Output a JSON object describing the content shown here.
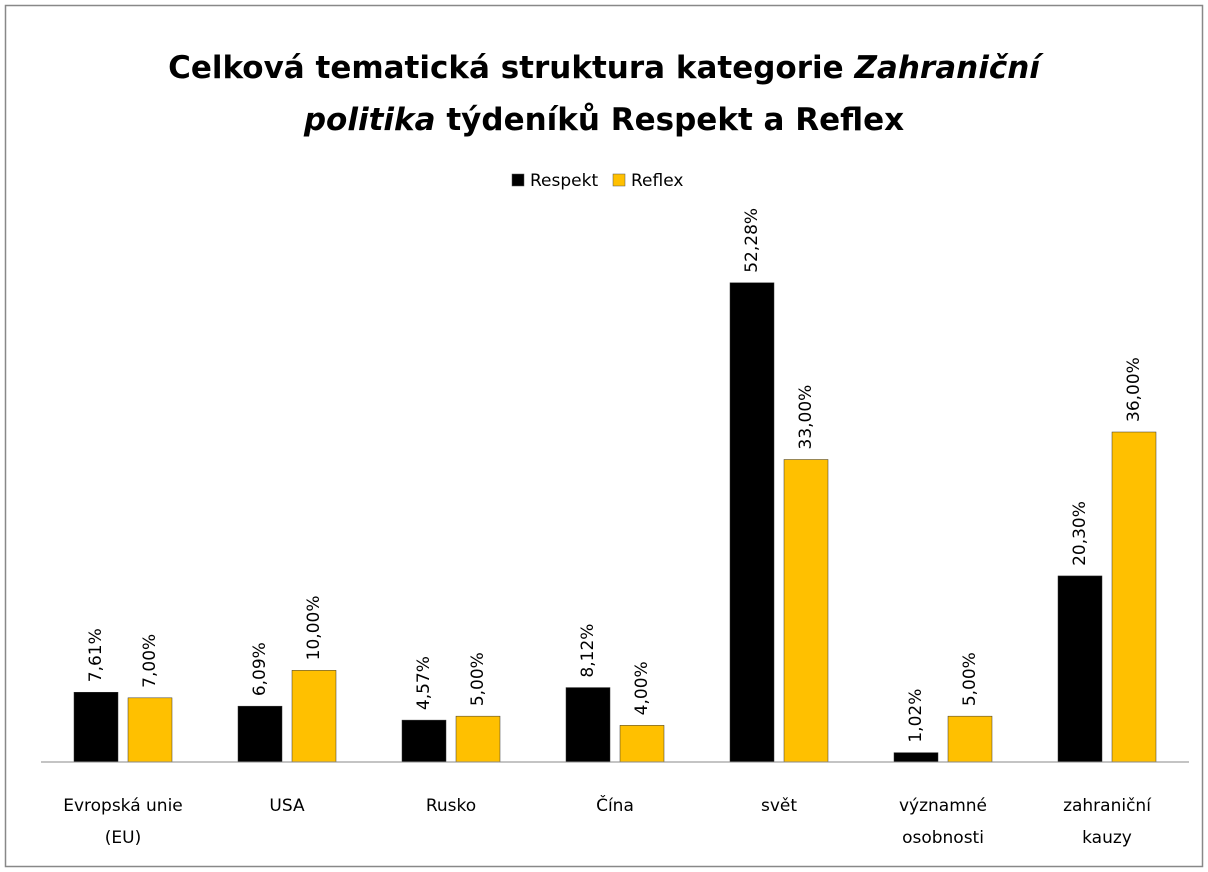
{
  "chart_data": {
    "type": "bar",
    "title": [
      [
        {
          "text": "Celková tematická struktura kategorie ",
          "italic": false
        },
        {
          "text": "Zahraniční",
          "italic": true
        }
      ],
      [
        {
          "text": "politika",
          "italic": true
        },
        {
          "text": " týdeníků Respekt a Reflex",
          "italic": false
        }
      ]
    ],
    "categories": [
      "Evropská unie\n(EU)",
      "USA",
      "Rusko",
      "Čína",
      "svět",
      "významné\nosobnosti",
      "zahraniční\nkauzy"
    ],
    "series": [
      {
        "name": "Respekt",
        "color": "#000000",
        "values": [
          7.61,
          6.09,
          4.57,
          8.12,
          52.28,
          1.02,
          20.3
        ],
        "value_labels": [
          "7,61%",
          "6,09%",
          "4,57%",
          "8,12%",
          "52,28%",
          "1,02%",
          "20,30%"
        ]
      },
      {
        "name": "Reflex",
        "color": "#ffc000",
        "values": [
          7,
          10,
          5,
          4,
          33,
          5,
          36
        ],
        "value_labels": [
          "7,00%",
          "10,00%",
          "5,00%",
          "4,00%",
          "33,00%",
          "5,00%",
          "36,00%"
        ]
      }
    ],
    "ylim": [
      0,
      60
    ],
    "legend": "top"
  }
}
